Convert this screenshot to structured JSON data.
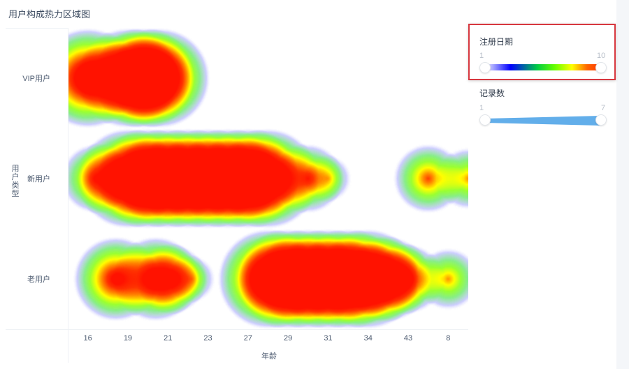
{
  "chart_data": {
    "type": "heatmap",
    "title": "用户构成热力区域图",
    "xlabel": "年龄",
    "ylabel": "用户类型",
    "x_categories": [
      "16",
      "19",
      "21",
      "23",
      "27",
      "29",
      "31",
      "34",
      "43",
      "8"
    ],
    "y_categories": [
      "VIP用户",
      "新用户",
      "老用户"
    ],
    "points": [
      {
        "x": 0.5,
        "y": "VIP用户",
        "value": 10
      },
      {
        "x": 1.5,
        "y": "VIP用户",
        "value": 10
      },
      {
        "x": 1.9,
        "y": "VIP用户",
        "value": 10
      },
      {
        "x": 2.3,
        "y": "VIP用户",
        "value": 10
      },
      {
        "x": 0.7,
        "y": "新用户",
        "value": 6
      },
      {
        "x": 1.5,
        "y": "新用户",
        "value": 10
      },
      {
        "x": 2.0,
        "y": "新用户",
        "value": 10
      },
      {
        "x": 2.5,
        "y": "新用户",
        "value": 10
      },
      {
        "x": 3.0,
        "y": "新用户",
        "value": 10
      },
      {
        "x": 3.5,
        "y": "新用户",
        "value": 10
      },
      {
        "x": 4.0,
        "y": "新用户",
        "value": 10
      },
      {
        "x": 4.5,
        "y": "新用户",
        "value": 10
      },
      {
        "x": 5.0,
        "y": "新用户",
        "value": 10
      },
      {
        "x": 6.0,
        "y": "新用户",
        "value": 6
      },
      {
        "x": 6.5,
        "y": "新用户",
        "value": 3
      },
      {
        "x": 9.0,
        "y": "新用户",
        "value": 6
      },
      {
        "x": 10.0,
        "y": "新用户",
        "value": 5
      },
      {
        "x": 1.2,
        "y": "老用户",
        "value": 8
      },
      {
        "x": 2.2,
        "y": "老用户",
        "value": 8
      },
      {
        "x": 2.6,
        "y": "老用户",
        "value": 6
      },
      {
        "x": 3.1,
        "y": "老用户",
        "value": 3
      },
      {
        "x": 5.0,
        "y": "老用户",
        "value": 10
      },
      {
        "x": 5.5,
        "y": "老用户",
        "value": 10
      },
      {
        "x": 6.0,
        "y": "老用户",
        "value": 10
      },
      {
        "x": 6.5,
        "y": "老用户",
        "value": 10
      },
      {
        "x": 7.0,
        "y": "老用户",
        "value": 10
      },
      {
        "x": 7.5,
        "y": "老用户",
        "value": 10
      },
      {
        "x": 8.0,
        "y": "老用户",
        "value": 8
      },
      {
        "x": 8.5,
        "y": "老用户",
        "value": 6
      },
      {
        "x": 9.5,
        "y": "老用户",
        "value": 5
      }
    ],
    "color_legend": {
      "title": "注册日期",
      "min": "1",
      "max": "10",
      "colors": [
        "#f2f2ff",
        "#0000ff",
        "#00cc44",
        "#66ff00",
        "#ffff00",
        "#ff6600",
        "#ff3300"
      ]
    },
    "size_legend": {
      "title": "记录数",
      "min": "1",
      "max": "7",
      "color": "#62aeea"
    }
  }
}
